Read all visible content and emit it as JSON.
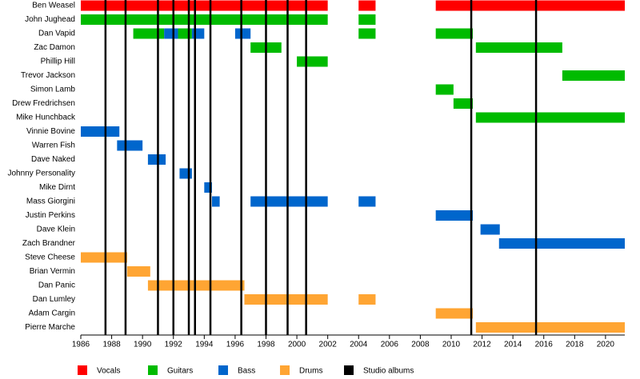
{
  "chart_data": {
    "type": "timeline",
    "categories": [
      "Ben Weasel",
      "John Jughead",
      "Dan Vapid",
      "Zac Damon",
      "Phillip Hill",
      "Trevor Jackson",
      "Simon Lamb",
      "Drew Fredrichsen",
      "Mike Hunchback",
      "Vinnie Bovine",
      "Warren Fish",
      "Dave Naked",
      "Johnny Personality",
      "Mike Dirnt",
      "Mass Giorgini",
      "Justin Perkins",
      "Dave Klein",
      "Zach Brandner",
      "Steve Cheese",
      "Brian Vermin",
      "Dan Panic",
      "Dan Lumley",
      "Adam Cargin",
      "Pierre Marche"
    ],
    "xlim": [
      1986,
      2021.25
    ],
    "xticks": [
      1986,
      1988,
      1990,
      1992,
      1994,
      1996,
      1998,
      2000,
      2002,
      2004,
      2006,
      2008,
      2010,
      2012,
      2014,
      2016,
      2018,
      2020
    ],
    "series": [
      {
        "name": "Vocals",
        "color": "#ff0000",
        "spans": [
          {
            "row": "Ben Weasel",
            "start": 1986,
            "end": 2002
          },
          {
            "row": "Ben Weasel",
            "start": 2004,
            "end": 2005.1
          },
          {
            "row": "Ben Weasel",
            "start": 2009,
            "end": 2021.25
          }
        ]
      },
      {
        "name": "Guitars",
        "color": "#00bb00",
        "spans": [
          {
            "row": "John Jughead",
            "start": 1986,
            "end": 2002
          },
          {
            "row": "John Jughead",
            "start": 2004,
            "end": 2005.1
          },
          {
            "row": "Dan Vapid",
            "start": 1989.4,
            "end": 1991.4
          },
          {
            "row": "Dan Vapid",
            "start": 1992.3,
            "end": 1993.2
          },
          {
            "row": "Dan Vapid",
            "start": 2004,
            "end": 2005.1
          },
          {
            "row": "Dan Vapid",
            "start": 2009,
            "end": 2011.4
          },
          {
            "row": "Zac Damon",
            "start": 1997,
            "end": 1999
          },
          {
            "row": "Zac Damon",
            "start": 2011.6,
            "end": 2017.2
          },
          {
            "row": "Phillip Hill",
            "start": 2000,
            "end": 2002
          },
          {
            "row": "Trevor Jackson",
            "start": 2017.2,
            "end": 2021.25
          },
          {
            "row": "Simon Lamb",
            "start": 2009,
            "end": 2010.15
          },
          {
            "row": "Drew Fredrichsen",
            "start": 2010.15,
            "end": 2011.4
          },
          {
            "row": "Mike Hunchback",
            "start": 2011.6,
            "end": 2021.25
          }
        ]
      },
      {
        "name": "Bass",
        "color": "#0066cc",
        "spans": [
          {
            "row": "Dan Vapid",
            "start": 1991.4,
            "end": 1992.3
          },
          {
            "row": "Dan Vapid",
            "start": 1993.2,
            "end": 1994
          },
          {
            "row": "Dan Vapid",
            "start": 1996,
            "end": 1997
          },
          {
            "row": "Vinnie Bovine",
            "start": 1986,
            "end": 1988.5
          },
          {
            "row": "Warren Fish",
            "start": 1988.35,
            "end": 1990
          },
          {
            "row": "Dave Naked",
            "start": 1990.35,
            "end": 1991.5
          },
          {
            "row": "Johnny Personality",
            "start": 1992.4,
            "end": 1993.2
          },
          {
            "row": "Mike Dirnt",
            "start": 1994,
            "end": 1994.5
          },
          {
            "row": "Mass Giorgini",
            "start": 1994.5,
            "end": 1995
          },
          {
            "row": "Mass Giorgini",
            "start": 1997,
            "end": 2002
          },
          {
            "row": "Mass Giorgini",
            "start": 2004,
            "end": 2005.1
          },
          {
            "row": "Justin Perkins",
            "start": 2009,
            "end": 2011.4
          },
          {
            "row": "Dave Klein",
            "start": 2011.9,
            "end": 2013.15
          },
          {
            "row": "Zach Brandner",
            "start": 2013.1,
            "end": 2021.25
          }
        ]
      },
      {
        "name": "Drums",
        "color": "#ffa533",
        "spans": [
          {
            "row": "Steve Cheese",
            "start": 1986,
            "end": 1989
          },
          {
            "row": "Brian Vermin",
            "start": 1989,
            "end": 1990.5
          },
          {
            "row": "Dan Panic",
            "start": 1990.35,
            "end": 1996.6
          },
          {
            "row": "Dan Lumley",
            "start": 1996.6,
            "end": 2002
          },
          {
            "row": "Dan Lumley",
            "start": 2004,
            "end": 2005.1
          },
          {
            "row": "Adam Cargin",
            "start": 2009,
            "end": 2011.4
          },
          {
            "row": "Pierre Marche",
            "start": 2011.6,
            "end": 2021.25
          }
        ]
      }
    ],
    "albums_label": "Studio albums",
    "albums_color": "#000000",
    "albums": [
      1987.6,
      1988.9,
      1991,
      1992,
      1993,
      1993.4,
      1994.4,
      1996.4,
      1998,
      1999.4,
      2000.6,
      2011.3,
      2015.5
    ]
  }
}
